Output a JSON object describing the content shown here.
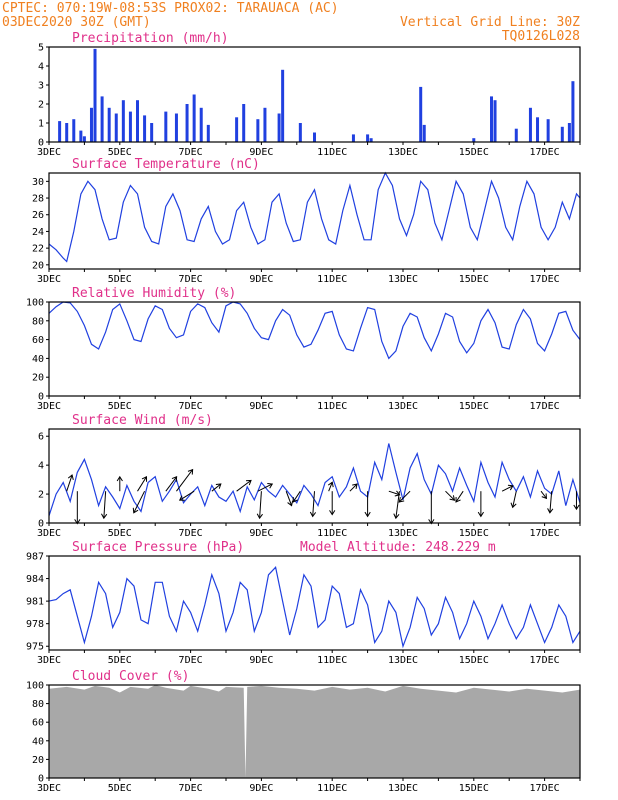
{
  "header": {
    "line1_left": "CPTEC:   070:19W-08:53S   PROX02: TARAUACA (AC)",
    "line2_left": "03DEC2020 30Z (GMT)",
    "line2_right": "Vertical Grid Line: 30Z",
    "line3_right": "TQ0126L028"
  },
  "colors": {
    "header": "#f08020",
    "title": "#e0308a",
    "series": "#2040e0",
    "cloud": "#a8a8a8"
  },
  "x_ticks": [
    "3DEC",
    "5DEC",
    "7DEC",
    "9DEC",
    "11DEC",
    "13DEC",
    "15DEC",
    "17DEC"
  ],
  "chart_data": [
    {
      "type": "bar",
      "title": "Precipitation (mm/h)",
      "x_range": [
        3,
        18
      ],
      "ylim": [
        0,
        5
      ],
      "y_ticks": [
        0,
        1,
        2,
        3,
        4,
        5
      ],
      "x": [
        3.3,
        3.5,
        3.7,
        3.9,
        4.0,
        4.2,
        4.3,
        4.5,
        4.7,
        4.9,
        5.1,
        5.3,
        5.5,
        5.7,
        5.9,
        6.3,
        6.6,
        6.9,
        7.1,
        7.3,
        7.5,
        8.3,
        8.5,
        8.9,
        9.1,
        9.5,
        9.6,
        10.1,
        10.5,
        11.6,
        12.0,
        12.1,
        13.5,
        13.6,
        15.0,
        15.5,
        15.6,
        16.2,
        16.6,
        16.8,
        17.1,
        17.5,
        17.7,
        17.8
      ],
      "values": [
        1.1,
        1.0,
        1.2,
        0.6,
        0.3,
        1.8,
        4.9,
        2.4,
        1.8,
        1.5,
        2.2,
        1.6,
        2.2,
        1.4,
        1.0,
        1.6,
        1.5,
        2.0,
        2.5,
        1.8,
        0.9,
        1.3,
        2.0,
        1.2,
        1.8,
        1.5,
        3.8,
        1.0,
        0.5,
        0.4,
        0.4,
        0.2,
        2.9,
        0.9,
        0.2,
        2.4,
        2.2,
        0.7,
        1.8,
        1.3,
        1.2,
        0.8,
        1.0,
        3.2
      ]
    },
    {
      "type": "line",
      "title": "Surface Temperature (nC)",
      "x_range": [
        3,
        18
      ],
      "ylim": [
        19.5,
        31
      ],
      "y_ticks": [
        20,
        22,
        24,
        26,
        28,
        30
      ],
      "x": [
        3.0,
        3.2,
        3.4,
        3.5,
        3.7,
        3.9,
        4.1,
        4.3,
        4.5,
        4.7,
        4.9,
        5.1,
        5.3,
        5.5,
        5.7,
        5.9,
        6.1,
        6.3,
        6.5,
        6.7,
        6.9,
        7.1,
        7.3,
        7.5,
        7.7,
        7.9,
        8.1,
        8.3,
        8.5,
        8.7,
        8.9,
        9.1,
        9.3,
        9.5,
        9.7,
        9.9,
        10.1,
        10.3,
        10.5,
        10.7,
        10.9,
        11.1,
        11.3,
        11.5,
        11.7,
        11.9,
        12.1,
        12.3,
        12.5,
        12.7,
        12.9,
        13.1,
        13.3,
        13.5,
        13.7,
        13.9,
        14.1,
        14.3,
        14.5,
        14.7,
        14.9,
        15.1,
        15.3,
        15.5,
        15.7,
        15.9,
        16.1,
        16.3,
        16.5,
        16.7,
        16.9,
        17.1,
        17.3,
        17.5,
        17.7,
        17.9,
        18.0
      ],
      "values": [
        22.5,
        21.8,
        20.8,
        20.4,
        24.0,
        28.5,
        30.0,
        29.0,
        25.5,
        23.0,
        23.2,
        27.5,
        29.5,
        28.5,
        24.5,
        22.8,
        22.5,
        27.0,
        28.5,
        26.5,
        23.0,
        22.8,
        25.5,
        27.0,
        24.0,
        22.5,
        23.0,
        26.5,
        27.5,
        24.5,
        22.5,
        23.0,
        27.5,
        28.5,
        25.0,
        22.8,
        23.0,
        27.5,
        29.0,
        25.5,
        23.0,
        22.5,
        26.5,
        29.5,
        26.0,
        23.0,
        23.0,
        29.0,
        31.0,
        29.5,
        25.5,
        23.5,
        26.0,
        30.0,
        29.0,
        25.0,
        23.0,
        26.5,
        30.0,
        28.5,
        24.5,
        23.0,
        26.5,
        30.0,
        28.0,
        24.5,
        23.0,
        27.0,
        30.0,
        28.5,
        24.5,
        23.0,
        24.5,
        27.5,
        25.5,
        28.5,
        28.0
      ]
    },
    {
      "type": "line",
      "title": "Relative Humidity (%)",
      "x_range": [
        3,
        18
      ],
      "ylim": [
        0,
        100
      ],
      "y_ticks": [
        0,
        20,
        40,
        60,
        80,
        100
      ],
      "x": [
        3.0,
        3.2,
        3.4,
        3.6,
        3.8,
        4.0,
        4.2,
        4.4,
        4.6,
        4.8,
        5.0,
        5.2,
        5.4,
        5.6,
        5.8,
        6.0,
        6.2,
        6.4,
        6.6,
        6.8,
        7.0,
        7.2,
        7.4,
        7.6,
        7.8,
        8.0,
        8.2,
        8.4,
        8.6,
        8.8,
        9.0,
        9.2,
        9.4,
        9.6,
        9.8,
        10.0,
        10.2,
        10.4,
        10.6,
        10.8,
        11.0,
        11.2,
        11.4,
        11.6,
        11.8,
        12.0,
        12.2,
        12.4,
        12.6,
        12.8,
        13.0,
        13.2,
        13.4,
        13.6,
        13.8,
        14.0,
        14.2,
        14.4,
        14.6,
        14.8,
        15.0,
        15.2,
        15.4,
        15.6,
        15.8,
        16.0,
        16.2,
        16.4,
        16.6,
        16.8,
        17.0,
        17.2,
        17.4,
        17.6,
        17.8,
        18.0
      ],
      "values": [
        88,
        95,
        100,
        99,
        90,
        75,
        55,
        50,
        68,
        92,
        98,
        80,
        60,
        58,
        82,
        96,
        92,
        72,
        62,
        65,
        90,
        98,
        94,
        78,
        68,
        96,
        100,
        98,
        88,
        72,
        62,
        60,
        80,
        92,
        86,
        65,
        52,
        55,
        70,
        88,
        90,
        65,
        50,
        48,
        72,
        94,
        92,
        58,
        40,
        48,
        74,
        88,
        84,
        62,
        48,
        66,
        88,
        84,
        58,
        46,
        56,
        80,
        92,
        78,
        52,
        50,
        76,
        92,
        82,
        56,
        48,
        66,
        88,
        90,
        70,
        60
      ]
    },
    {
      "type": "line",
      "title": "Surface Wind (m/s)",
      "x_range": [
        3,
        18
      ],
      "ylim": [
        0,
        6.5
      ],
      "y_ticks": [
        0,
        2,
        4,
        6
      ],
      "x": [
        3.0,
        3.2,
        3.4,
        3.6,
        3.8,
        4.0,
        4.2,
        4.4,
        4.6,
        4.8,
        5.0,
        5.2,
        5.4,
        5.6,
        5.8,
        6.0,
        6.2,
        6.4,
        6.6,
        6.8,
        7.0,
        7.2,
        7.4,
        7.6,
        7.8,
        8.0,
        8.2,
        8.4,
        8.6,
        8.8,
        9.0,
        9.2,
        9.4,
        9.6,
        9.8,
        10.0,
        10.2,
        10.4,
        10.6,
        10.8,
        11.0,
        11.2,
        11.4,
        11.6,
        11.8,
        12.0,
        12.2,
        12.4,
        12.6,
        12.8,
        13.0,
        13.2,
        13.4,
        13.6,
        13.8,
        14.0,
        14.2,
        14.4,
        14.6,
        14.8,
        15.0,
        15.2,
        15.4,
        15.6,
        15.8,
        16.0,
        16.2,
        16.4,
        16.6,
        16.8,
        17.0,
        17.2,
        17.4,
        17.6,
        17.8,
        18.0
      ],
      "values": [
        0.5,
        2.0,
        2.8,
        1.5,
        3.5,
        4.4,
        3.0,
        1.2,
        2.5,
        1.8,
        1.0,
        2.6,
        1.5,
        0.8,
        2.8,
        3.2,
        1.5,
        2.2,
        3.0,
        1.4,
        2.0,
        2.5,
        1.2,
        2.6,
        1.8,
        1.5,
        2.2,
        0.8,
        2.5,
        1.6,
        2.8,
        2.2,
        1.8,
        2.6,
        2.0,
        1.4,
        2.6,
        2.0,
        1.2,
        2.8,
        3.2,
        1.8,
        2.5,
        3.8,
        2.2,
        1.8,
        4.2,
        3.0,
        5.5,
        3.5,
        1.6,
        3.8,
        4.8,
        3.0,
        2.0,
        4.0,
        3.4,
        2.2,
        3.8,
        2.6,
        1.5,
        4.2,
        2.8,
        1.8,
        4.2,
        3.0,
        2.2,
        3.2,
        1.8,
        3.6,
        2.4,
        2.0,
        3.6,
        1.2,
        3.0,
        1.4
      ],
      "vectors": [
        {
          "x": 3.5,
          "dx": 0.3,
          "dy": 0.9
        },
        {
          "x": 3.8,
          "dx": 0.0,
          "dy": -1.8
        },
        {
          "x": 4.6,
          "dx": -0.1,
          "dy": -1.5
        },
        {
          "x": 5.0,
          "dx": 0.0,
          "dy": 0.8
        },
        {
          "x": 5.5,
          "dx": 0.5,
          "dy": 0.8
        },
        {
          "x": 5.7,
          "dx": -0.6,
          "dy": -1.2
        },
        {
          "x": 6.3,
          "dx": 0.6,
          "dy": 0.8
        },
        {
          "x": 6.6,
          "dx": 0.9,
          "dy": 1.2
        },
        {
          "x": 7.1,
          "dx": -0.8,
          "dy": -0.5
        },
        {
          "x": 7.6,
          "dx": 0.5,
          "dy": 0.4
        },
        {
          "x": 8.3,
          "dx": 0.8,
          "dy": 0.6
        },
        {
          "x": 8.9,
          "dx": 0.8,
          "dy": 0.4
        },
        {
          "x": 9.0,
          "dx": -0.1,
          "dy": -1.5
        },
        {
          "x": 9.7,
          "dx": 0.3,
          "dy": -0.8
        },
        {
          "x": 10.1,
          "dx": -0.4,
          "dy": -0.6
        },
        {
          "x": 10.5,
          "dx": -0.1,
          "dy": -1.4
        },
        {
          "x": 10.9,
          "dx": 0.2,
          "dy": 0.5
        },
        {
          "x": 11.0,
          "dx": 0.0,
          "dy": -1.3
        },
        {
          "x": 11.5,
          "dx": 0.4,
          "dy": 0.4
        },
        {
          "x": 12.0,
          "dx": 0.0,
          "dy": -1.4
        },
        {
          "x": 12.6,
          "dx": 0.6,
          "dy": -0.2
        },
        {
          "x": 12.9,
          "dx": -0.2,
          "dy": -1.5
        },
        {
          "x": 13.2,
          "dx": -0.6,
          "dy": -0.6
        },
        {
          "x": 13.8,
          "dx": 0.0,
          "dy": -1.8
        },
        {
          "x": 14.2,
          "dx": 0.5,
          "dy": -0.5
        },
        {
          "x": 14.7,
          "dx": -0.4,
          "dy": -0.6
        },
        {
          "x": 15.2,
          "dx": 0.0,
          "dy": -1.4
        },
        {
          "x": 15.8,
          "dx": 0.6,
          "dy": 0.3
        },
        {
          "x": 16.2,
          "dx": -0.2,
          "dy": -0.9
        },
        {
          "x": 16.9,
          "dx": 0.3,
          "dy": -0.4
        },
        {
          "x": 17.2,
          "dx": -0.1,
          "dy": -1.2
        },
        {
          "x": 17.9,
          "dx": 0.0,
          "dy": -1.0
        }
      ]
    },
    {
      "type": "line",
      "title": "Surface Pressure (hPa)",
      "subtitle": "Model Altitude: 248.229  m",
      "x_range": [
        3,
        18
      ],
      "ylim": [
        974.5,
        987
      ],
      "y_ticks": [
        975,
        978,
        981,
        984,
        987
      ],
      "y_tick_labels": [
        "975",
        "978",
        "981",
        "984",
        "987"
      ],
      "x": [
        3.0,
        3.2,
        3.4,
        3.6,
        3.8,
        4.0,
        4.2,
        4.4,
        4.6,
        4.8,
        5.0,
        5.2,
        5.4,
        5.6,
        5.8,
        6.0,
        6.2,
        6.4,
        6.6,
        6.8,
        7.0,
        7.2,
        7.4,
        7.6,
        7.8,
        8.0,
        8.2,
        8.4,
        8.6,
        8.8,
        9.0,
        9.2,
        9.4,
        9.6,
        9.8,
        10.0,
        10.2,
        10.4,
        10.6,
        10.8,
        11.0,
        11.2,
        11.4,
        11.6,
        11.8,
        12.0,
        12.2,
        12.4,
        12.6,
        12.8,
        13.0,
        13.2,
        13.4,
        13.6,
        13.8,
        14.0,
        14.2,
        14.4,
        14.6,
        14.8,
        15.0,
        15.2,
        15.4,
        15.6,
        15.8,
        16.0,
        16.2,
        16.4,
        16.6,
        16.8,
        17.0,
        17.2,
        17.4,
        17.6,
        17.8,
        18.0
      ],
      "values": [
        981.0,
        981.2,
        982.0,
        982.5,
        979.0,
        975.5,
        979.0,
        983.5,
        982.0,
        977.5,
        979.5,
        984.0,
        983.0,
        978.5,
        978.0,
        983.5,
        983.5,
        979.0,
        977.0,
        981.0,
        979.5,
        977.0,
        980.5,
        984.5,
        982.0,
        977.0,
        979.5,
        983.5,
        982.5,
        977.0,
        979.5,
        984.5,
        985.5,
        981.0,
        976.5,
        980.0,
        984.5,
        983.0,
        977.5,
        978.5,
        983.0,
        982.0,
        977.5,
        978.0,
        982.5,
        980.5,
        975.5,
        977.0,
        981.0,
        979.5,
        975.0,
        977.5,
        981.5,
        980.0,
        976.5,
        978.0,
        981.5,
        979.5,
        976.0,
        978.0,
        981.0,
        979.0,
        976.0,
        978.0,
        980.5,
        978.0,
        976.0,
        977.5,
        980.5,
        978.0,
        975.5,
        977.5,
        980.5,
        979.0,
        975.5,
        977.0
      ]
    },
    {
      "type": "area",
      "title": "Cloud Cover (%)",
      "x_range": [
        3,
        18
      ],
      "ylim": [
        0,
        100
      ],
      "y_ticks": [
        0,
        20,
        40,
        60,
        80,
        100
      ],
      "x": [
        3.0,
        3.5,
        4.0,
        4.3,
        4.7,
        5.0,
        5.3,
        5.8,
        6.0,
        6.3,
        6.8,
        7.0,
        7.5,
        7.8,
        8.0,
        8.5,
        8.55,
        8.6,
        9.0,
        9.5,
        10.0,
        10.5,
        11.0,
        11.5,
        12.0,
        12.5,
        13.0,
        13.5,
        14.0,
        14.5,
        15.0,
        15.5,
        16.0,
        16.5,
        17.0,
        17.5,
        18.0
      ],
      "values": [
        96,
        98,
        95,
        99,
        97,
        92,
        98,
        96,
        100,
        97,
        94,
        99,
        96,
        93,
        98,
        97,
        0,
        98,
        99,
        97,
        96,
        94,
        98,
        95,
        97,
        93,
        99,
        96,
        94,
        92,
        97,
        95,
        93,
        96,
        94,
        92,
        95
      ]
    }
  ]
}
